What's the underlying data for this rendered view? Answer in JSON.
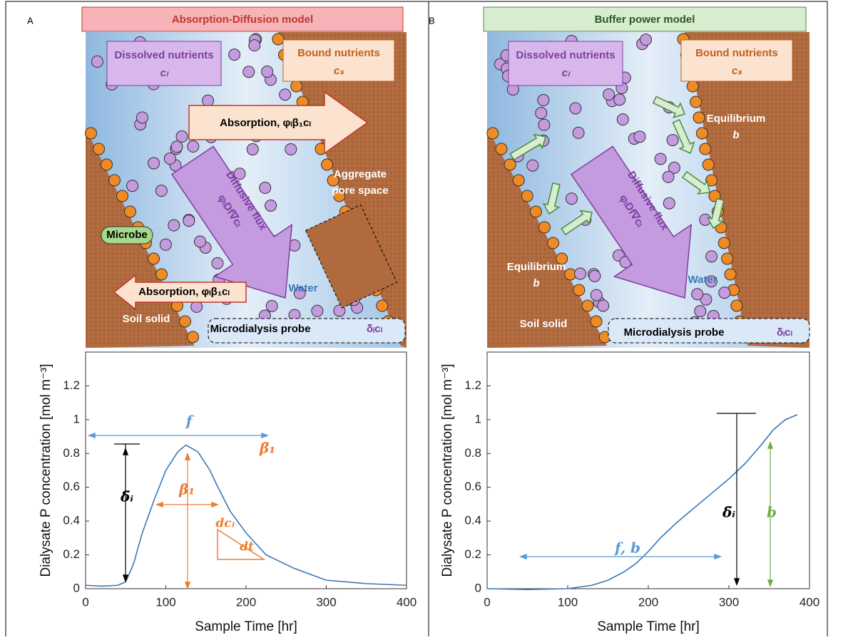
{
  "panels": [
    {
      "label": "A",
      "title": "Absorption-Diffusion model",
      "texts": [
        "Dissolved nutrients",
        "cₗ",
        "Bound nutrients",
        "cₛ",
        "Absorption, φₗβ₁cₗ",
        "Diffusive flux",
        "φₗDf∇cₗ",
        "Aggregate",
        "pore space",
        "Microbe",
        "Absorption, φₗβ₁cₗ",
        "Water",
        "Soil solid",
        "Microdialysis probe",
        "δᵢcₗ"
      ]
    },
    {
      "label": "B",
      "title": "Buffer power model",
      "texts": [
        "Dissolved nutrients",
        "cₗ",
        "Bound nutrients",
        "cₛ",
        "Equilibrium",
        "b",
        "Diffusive flux",
        "φₗDf∇cₗ",
        "Equilibrium",
        "b",
        "Water",
        "Soil solid",
        "Microdialysis probe",
        "δᵢcₗ"
      ]
    }
  ],
  "chart_data": [
    {
      "type": "line",
      "x_label": "Sample Time [hr]",
      "y_label": "Dialysate P concentration [mol m⁻³]",
      "x": [
        0,
        20,
        40,
        50,
        60,
        70,
        85,
        100,
        115,
        125,
        140,
        155,
        165,
        180,
        200,
        225,
        260,
        300,
        350,
        400
      ],
      "values": [
        0.02,
        0.015,
        0.02,
        0.04,
        0.15,
        0.32,
        0.52,
        0.7,
        0.81,
        0.85,
        0.81,
        0.7,
        0.6,
        0.46,
        0.33,
        0.2,
        0.12,
        0.05,
        0.03,
        0.02
      ],
      "color": "#3a78b8",
      "xlim": [
        0,
        400
      ],
      "ylim": [
        0,
        1.4
      ],
      "xticks": [
        0,
        100,
        200,
        300,
        400
      ],
      "yticks": [
        0,
        0.2,
        0.4,
        0.6,
        0.8,
        1,
        1.2
      ],
      "annotations": [
        "f",
        "δ̃ᵢ",
        "β̃₁",
        "β̃₁",
        "dcₗ",
        "dt"
      ]
    },
    {
      "type": "line",
      "x_label": "Sample Time [hr]",
      "y_label": "Dialysate P concentration [mol m⁻³]",
      "x": [
        0,
        50,
        100,
        130,
        150,
        170,
        185,
        200,
        215,
        235,
        250,
        275,
        300,
        320,
        340,
        355,
        370,
        385
      ],
      "values": [
        0,
        -0.005,
        0,
        0.02,
        0.05,
        0.1,
        0.15,
        0.22,
        0.3,
        0.39,
        0.45,
        0.55,
        0.65,
        0.74,
        0.85,
        0.94,
        1.0,
        1.03
      ],
      "color": "#3a78b8",
      "xlim": [
        0,
        400
      ],
      "ylim": [
        0,
        1.4
      ],
      "xticks": [
        0,
        100,
        200,
        300,
        400
      ],
      "yticks": [
        0,
        0.2,
        0.4,
        0.6,
        0.8,
        1,
        1.2
      ],
      "annotations": [
        "f, b",
        "δ̃ᵢ",
        "b"
      ]
    }
  ]
}
